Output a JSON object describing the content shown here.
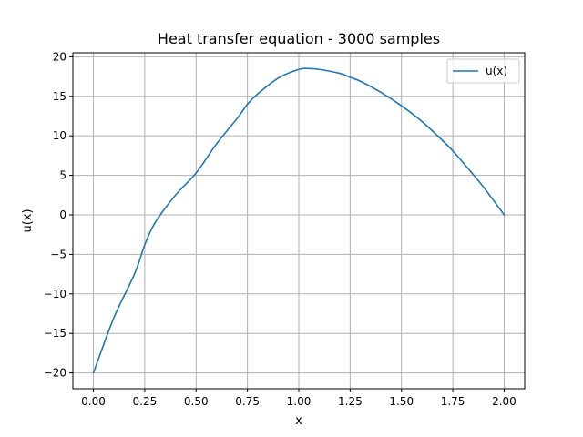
{
  "chart_data": {
    "type": "line",
    "title": "Heat transfer equation - 3000 samples",
    "xlabel": "x",
    "ylabel": "u(x)",
    "xlim": [
      -0.1,
      2.1
    ],
    "ylim": [
      -22,
      20.5
    ],
    "xticks": [
      0.0,
      0.25,
      0.5,
      0.75,
      1.0,
      1.25,
      1.5,
      1.75,
      2.0
    ],
    "xtick_labels": [
      "0.00",
      "0.25",
      "0.50",
      "0.75",
      "1.00",
      "1.25",
      "1.50",
      "1.75",
      "2.00"
    ],
    "yticks": [
      -20,
      -15,
      -10,
      -5,
      0,
      5,
      10,
      15,
      20
    ],
    "ytick_labels": [
      "−20",
      "−15",
      "−10",
      "−5",
      "0",
      "5",
      "10",
      "15",
      "20"
    ],
    "grid": true,
    "legend_position": "top-right",
    "series": [
      {
        "name": "u(x)",
        "color": "#1f77b4",
        "x": [
          0.0,
          0.1,
          0.2,
          0.25,
          0.3,
          0.4,
          0.5,
          0.6,
          0.7,
          0.75,
          0.8,
          0.9,
          1.0,
          1.05,
          1.1,
          1.2,
          1.25,
          1.3,
          1.4,
          1.5,
          1.6,
          1.7,
          1.75,
          1.8,
          1.9,
          2.0
        ],
        "values": [
          -20.0,
          -13.0,
          -7.5,
          -3.8,
          -1.0,
          2.5,
          5.3,
          9.0,
          12.2,
          14.0,
          15.3,
          17.3,
          18.4,
          18.5,
          18.4,
          17.9,
          17.4,
          16.9,
          15.5,
          13.8,
          11.8,
          9.4,
          8.1,
          6.6,
          3.5,
          0.0
        ]
      }
    ]
  }
}
